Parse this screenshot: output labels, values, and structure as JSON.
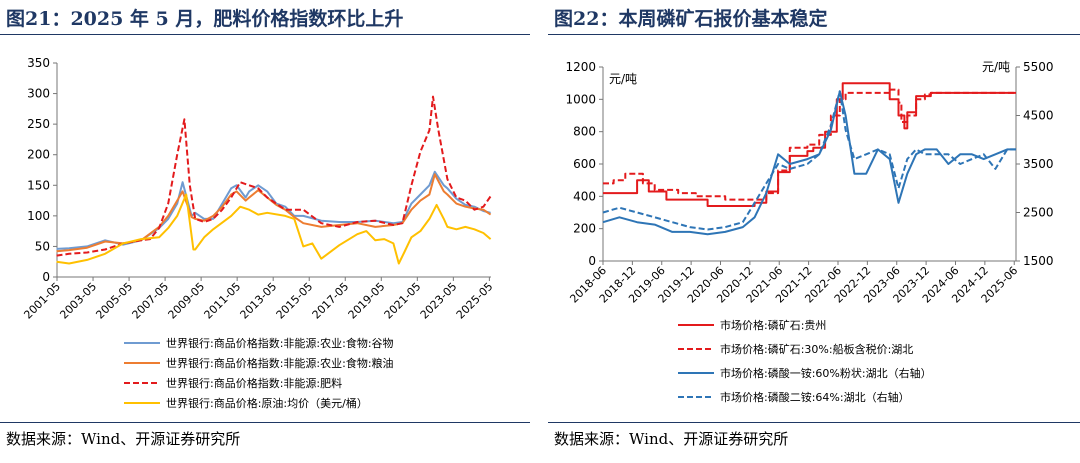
{
  "left": {
    "title": "图21：2025 年 5 月，肥料价格指数环比上升",
    "source": "数据来源：Wind、开源证券研究所"
  },
  "right": {
    "title": "图22：本周磷矿石报价基本稳定",
    "source": "数据来源：Wind、开源证券研究所"
  },
  "chart_data": [
    {
      "type": "line",
      "ylim": [
        0,
        350
      ],
      "yticks": [
        0,
        50,
        100,
        150,
        200,
        250,
        300,
        350
      ],
      "xlim": [
        2001.33,
        2025.42
      ],
      "xtick_labels": [
        "2001-05",
        "2003-05",
        "2005-05",
        "2007-05",
        "2009-05",
        "2011-05",
        "2013-05",
        "2015-05",
        "2017-05",
        "2019-05",
        "2021-05",
        "2023-05",
        "2025-05"
      ],
      "xtick_values": [
        2001.33,
        2003.33,
        2005.33,
        2007.33,
        2009.33,
        2011.33,
        2013.33,
        2015.33,
        2017.33,
        2019.33,
        2021.33,
        2023.33,
        2025.33
      ],
      "legend_position": "bottom",
      "series": [
        {
          "name": "世界银行:商品价格指数:非能源:农业:食物:谷物",
          "color": "#6f9bd1",
          "dash": "solid",
          "x": [
            2001.3,
            2002,
            2003,
            2004,
            2005,
            2006,
            2007,
            2007.5,
            2008,
            2008.3,
            2008.8,
            2009,
            2009.5,
            2010,
            2010.5,
            2011,
            2011.3,
            2011.8,
            2012,
            2012.5,
            2013,
            2013.5,
            2014,
            2014.5,
            2015,
            2016,
            2017,
            2018,
            2019,
            2020,
            2020.5,
            2021,
            2021.5,
            2022,
            2022.3,
            2022.8,
            2023,
            2023.5,
            2024,
            2024.5,
            2025,
            2025.4
          ],
          "y": [
            46,
            47,
            50,
            60,
            53,
            60,
            80,
            95,
            120,
            155,
            100,
            105,
            95,
            95,
            120,
            145,
            150,
            130,
            140,
            150,
            140,
            120,
            115,
            100,
            100,
            92,
            90,
            90,
            92,
            88,
            90,
            120,
            135,
            150,
            172,
            150,
            145,
            128,
            118,
            115,
            108,
            105
          ]
        },
        {
          "name": "世界银行:商品价格指数:非能源:农业:食物:粮油",
          "color": "#ed7d31",
          "dash": "solid",
          "x": [
            2001.3,
            2002,
            2003,
            2004,
            2005,
            2006,
            2007,
            2007.5,
            2008,
            2008.3,
            2008.8,
            2009,
            2009.5,
            2010,
            2010.5,
            2011,
            2011.3,
            2011.8,
            2012,
            2012.5,
            2013,
            2013.5,
            2014,
            2014.5,
            2015,
            2016,
            2017,
            2018,
            2019,
            2020,
            2020.5,
            2021,
            2021.5,
            2022,
            2022.3,
            2022.8,
            2023,
            2023.5,
            2024,
            2024.5,
            2025,
            2025.4
          ],
          "y": [
            42,
            44,
            48,
            58,
            55,
            60,
            82,
            100,
            125,
            140,
            98,
            95,
            92,
            100,
            115,
            135,
            140,
            125,
            130,
            142,
            130,
            118,
            110,
            98,
            88,
            82,
            85,
            88,
            82,
            85,
            88,
            110,
            125,
            135,
            168,
            140,
            135,
            120,
            115,
            112,
            110,
            102
          ]
        },
        {
          "name": "世界银行:商品价格指数:非能源:肥料",
          "color": "#e31a1c",
          "dash": "dashed",
          "x": [
            2001.3,
            2002,
            2003,
            2004,
            2005,
            2006,
            2006.5,
            2007,
            2007.5,
            2008,
            2008.4,
            2008.7,
            2009,
            2009.5,
            2010,
            2010.5,
            2011,
            2011.5,
            2012,
            2012.5,
            2013,
            2014,
            2015,
            2016,
            2017,
            2018,
            2019,
            2020,
            2020.5,
            2021,
            2021.5,
            2022,
            2022.2,
            2022.5,
            2023,
            2023.5,
            2024,
            2024.5,
            2025,
            2025.4
          ],
          "y": [
            35,
            38,
            40,
            45,
            55,
            60,
            62,
            80,
            120,
            200,
            258,
            150,
            95,
            90,
            95,
            110,
            130,
            155,
            150,
            145,
            130,
            110,
            110,
            88,
            82,
            90,
            92,
            85,
            88,
            150,
            205,
            240,
            295,
            240,
            160,
            130,
            125,
            110,
            115,
            132
          ]
        },
        {
          "name": "世界银行:商品价格:原油:均价（美元/桶）",
          "color": "#ffc000",
          "dash": "solid",
          "x": [
            2001.3,
            2002,
            2003,
            2004,
            2005,
            2006,
            2007,
            2007.5,
            2008,
            2008.5,
            2008.9,
            2009,
            2009.5,
            2010,
            2011,
            2011.5,
            2012,
            2012.5,
            2013,
            2014,
            2014.5,
            2015,
            2015.5,
            2016,
            2017,
            2018,
            2018.5,
            2019,
            2019.5,
            2020,
            2020.3,
            2020.6,
            2021,
            2021.5,
            2022,
            2022.4,
            2022.8,
            2023,
            2023.5,
            2024,
            2024.5,
            2025,
            2025.4
          ],
          "y": [
            25,
            22,
            28,
            38,
            55,
            62,
            65,
            80,
            100,
            135,
            45,
            45,
            65,
            78,
            100,
            115,
            110,
            102,
            105,
            100,
            95,
            50,
            55,
            30,
            52,
            70,
            75,
            60,
            62,
            55,
            22,
            40,
            65,
            75,
            95,
            118,
            95,
            82,
            78,
            82,
            78,
            72,
            62
          ]
        }
      ]
    },
    {
      "type": "line",
      "ylim": [
        0,
        1200
      ],
      "yticks": [
        0,
        200,
        400,
        600,
        800,
        1000,
        1200
      ],
      "ylabel": "元/吨",
      "y2lim": [
        1500,
        5500
      ],
      "y2ticks": [
        1500,
        2500,
        3500,
        4500,
        5500
      ],
      "y2label": "元/吨",
      "xlim": [
        2018.42,
        2025.45
      ],
      "xtick_labels": [
        "2018-06",
        "2018-12",
        "2019-06",
        "2019-12",
        "2020-06",
        "2020-12",
        "2021-06",
        "2021-12",
        "2022-06",
        "2022-12",
        "2023-06",
        "2023-12",
        "2024-06",
        "2024-12",
        "2025-06"
      ],
      "xtick_values": [
        2018.42,
        2018.92,
        2019.42,
        2019.92,
        2020.42,
        2020.92,
        2021.42,
        2021.92,
        2022.42,
        2022.92,
        2023.42,
        2023.92,
        2024.42,
        2024.92,
        2025.42
      ],
      "legend_position": "bottom",
      "series": [
        {
          "name": "市场价格:磷矿石:贵州",
          "color": "#e31a1c",
          "dash": "solid",
          "axis": "left",
          "step": true,
          "x": [
            2018.42,
            2018.75,
            2019.0,
            2019.2,
            2019.5,
            2020.2,
            2020.8,
            2021.0,
            2021.2,
            2021.4,
            2021.6,
            2021.9,
            2022.0,
            2022.2,
            2022.4,
            2022.5,
            2022.7,
            2023.0,
            2023.2,
            2023.3,
            2023.45,
            2023.55,
            2023.6,
            2023.75,
            2024.0,
            2025.45
          ],
          "y": [
            420,
            420,
            500,
            430,
            380,
            340,
            340,
            360,
            430,
            550,
            650,
            680,
            700,
            800,
            1000,
            1100,
            1100,
            1100,
            1100,
            1000,
            900,
            820,
            920,
            1020,
            1040,
            1040
          ]
        },
        {
          "name": "市场价格:磷矿石:30%:船板含税价:湖北",
          "color": "#e31a1c",
          "dash": "dashed",
          "axis": "left",
          "step": true,
          "x": [
            2018.42,
            2018.6,
            2018.8,
            2019.1,
            2019.3,
            2019.7,
            2020.0,
            2020.5,
            2020.9,
            2021.2,
            2021.4,
            2021.6,
            2021.9,
            2022.1,
            2022.3,
            2022.45,
            2022.55,
            2022.7,
            2023.0,
            2023.2,
            2023.3,
            2023.45,
            2023.5,
            2023.6,
            2023.75,
            2023.9,
            2024.0,
            2025.45
          ],
          "y": [
            480,
            500,
            540,
            480,
            440,
            420,
            400,
            380,
            380,
            420,
            560,
            700,
            720,
            780,
            900,
            1000,
            1040,
            1040,
            1040,
            1040,
            1060,
            980,
            860,
            900,
            1000,
            1030,
            1040,
            1040
          ]
        },
        {
          "name": "市场价格:磷酸一铵:60%粉状:湖北（右轴）",
          "color": "#2e75b6",
          "dash": "solid",
          "axis": "right",
          "x": [
            2018.42,
            2018.7,
            2019.0,
            2019.3,
            2019.6,
            2019.9,
            2020.2,
            2020.5,
            2020.8,
            2021.0,
            2021.2,
            2021.4,
            2021.6,
            2021.9,
            2022.1,
            2022.3,
            2022.45,
            2022.55,
            2022.7,
            2022.9,
            2023.1,
            2023.3,
            2023.45,
            2023.6,
            2023.75,
            2023.9,
            2024.1,
            2024.3,
            2024.5,
            2024.7,
            2024.9,
            2025.1,
            2025.3,
            2025.45
          ],
          "y": [
            2300,
            2400,
            2300,
            2250,
            2100,
            2100,
            2050,
            2100,
            2200,
            2400,
            2900,
            3700,
            3500,
            3600,
            3700,
            4200,
            5000,
            4500,
            3300,
            3300,
            3800,
            3600,
            2700,
            3300,
            3700,
            3800,
            3800,
            3500,
            3700,
            3700,
            3600,
            3700,
            3800,
            3800
          ]
        },
        {
          "name": "市场价格:磷酸二铵:64%:湖北（右轴）",
          "color": "#2e75b6",
          "dash": "dashed",
          "axis": "right",
          "x": [
            2018.42,
            2018.7,
            2019.0,
            2019.3,
            2019.6,
            2019.9,
            2020.2,
            2020.5,
            2020.8,
            2021.0,
            2021.2,
            2021.4,
            2021.6,
            2021.9,
            2022.1,
            2022.3,
            2022.45,
            2022.55,
            2022.7,
            2022.9,
            2023.1,
            2023.3,
            2023.45,
            2023.6,
            2023.75,
            2023.9,
            2024.1,
            2024.3,
            2024.5,
            2024.7,
            2024.9,
            2025.1,
            2025.3,
            2025.45
          ],
          "y": [
            2500,
            2600,
            2500,
            2400,
            2300,
            2200,
            2150,
            2200,
            2300,
            2700,
            3100,
            3500,
            3400,
            3500,
            3700,
            4300,
            5000,
            4200,
            3600,
            3700,
            3800,
            3700,
            3000,
            3600,
            3800,
            3700,
            3700,
            3700,
            3500,
            3600,
            3700,
            3400,
            3800,
            3800
          ]
        }
      ]
    }
  ]
}
